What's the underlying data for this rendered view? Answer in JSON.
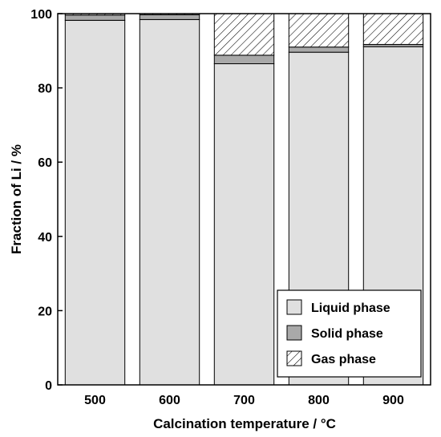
{
  "chart_data": {
    "type": "bar",
    "stacked": true,
    "xlabel": "Calcination temperature / ",
    "xlabel_unit": "°C",
    "ylabel": "Fraction of Li / %",
    "ylim": [
      0,
      100
    ],
    "yticks": [
      0,
      20,
      40,
      60,
      80,
      100
    ],
    "categories": [
      "500",
      "600",
      "700",
      "800",
      "900"
    ],
    "series": [
      {
        "name": "Liquid phase",
        "values": [
          98.2,
          98.4,
          86.5,
          89.6,
          91.1
        ]
      },
      {
        "name": "Solid phase",
        "values": [
          1.4,
          1.3,
          2.3,
          1.4,
          0.6
        ]
      },
      {
        "name": "Gas phase",
        "values": [
          0.4,
          0.3,
          11.2,
          9.0,
          8.3
        ]
      }
    ],
    "legend_position": "bottom-right",
    "grid": false,
    "colors": {
      "liquid": "#e0e0e0",
      "solid": "#a9a9a9",
      "gas_hatch": "#000000",
      "axis": "#000000"
    }
  }
}
